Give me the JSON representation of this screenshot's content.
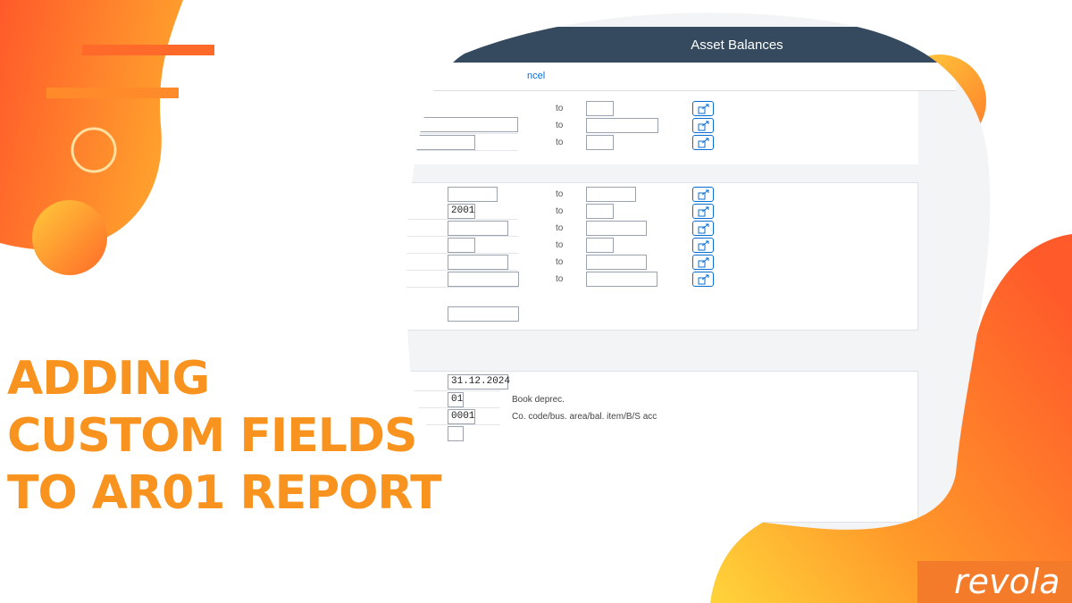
{
  "window": {
    "title": "Asset Balances"
  },
  "toolbar": {
    "cancel_label": "ncel"
  },
  "range_label": "to",
  "selection_values": {
    "fiscal_year": "2001",
    "report_date": "31.12.2024",
    "depreciation_area": "01",
    "sort_variant": "0001"
  },
  "descriptions": {
    "depreciation_area": "Book deprec.",
    "sort_variant": "Co. code/bus. area/bal. item/B/S acc"
  },
  "headline": {
    "line1": "ADDING",
    "line2": "CUSTOM FIELDS",
    "line3": "TO AR01 REPORT"
  },
  "logo": {
    "text": "revola"
  },
  "colors": {
    "headline": "#f7931e",
    "accent_orange": "#f47b2a",
    "header_bar": "#354a5f",
    "link_blue": "#0a6ed1"
  },
  "icons": [
    "multiple-selection-icon",
    "decorative-circle-outline"
  ]
}
